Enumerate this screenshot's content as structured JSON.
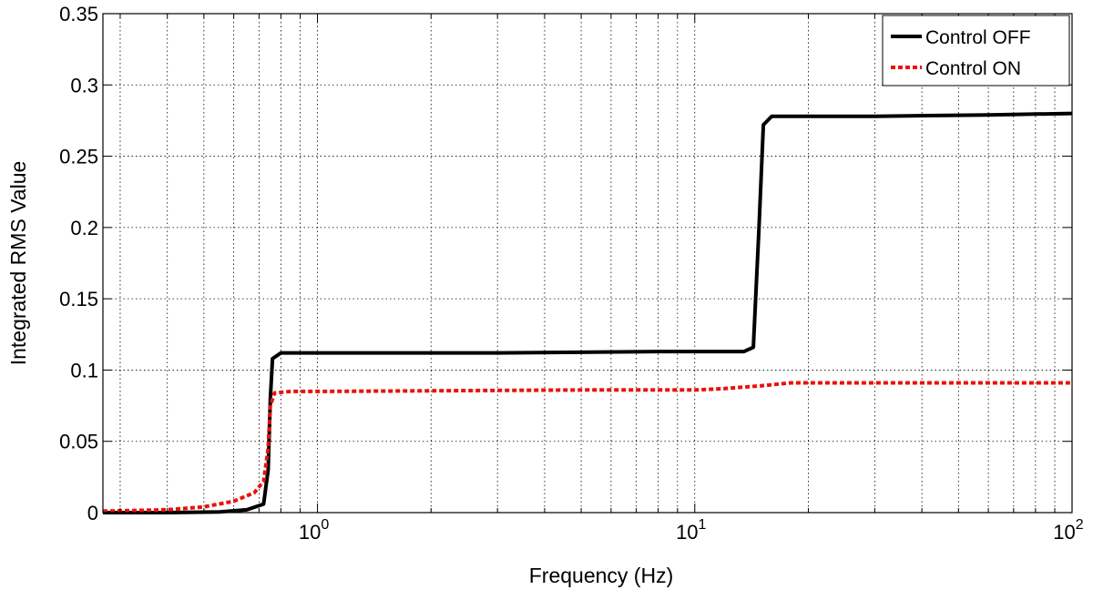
{
  "chart_data": {
    "type": "line",
    "title": "",
    "xlabel": "Frequency (Hz)",
    "ylabel": "Integrated RMS Value",
    "xscale": "log",
    "xlim": [
      0.27,
      100
    ],
    "ylim": [
      0,
      0.35
    ],
    "grid": true,
    "legend_position": "top-right",
    "x_ticks": [
      {
        "value": 1,
        "base": "10",
        "exp": "0"
      },
      {
        "value": 10,
        "base": "10",
        "exp": "1"
      },
      {
        "value": 100,
        "base": "10",
        "exp": "2"
      }
    ],
    "y_ticks": [
      {
        "value": 0,
        "label": "0"
      },
      {
        "value": 0.05,
        "label": "0.05"
      },
      {
        "value": 0.1,
        "label": "0.1"
      },
      {
        "value": 0.15,
        "label": "0.15"
      },
      {
        "value": 0.2,
        "label": "0.2"
      },
      {
        "value": 0.25,
        "label": "0.25"
      },
      {
        "value": 0.3,
        "label": "0.3"
      },
      {
        "value": 0.35,
        "label": "0.35"
      }
    ],
    "series": [
      {
        "name": "Control OFF",
        "color": "#000000",
        "style": "solid",
        "x": [
          0.27,
          0.4,
          0.55,
          0.65,
          0.72,
          0.74,
          0.75,
          0.76,
          0.8,
          1.0,
          3.0,
          8.0,
          13.5,
          14.3,
          14.8,
          15.2,
          16.0,
          30.0,
          60.0,
          100.0
        ],
        "y": [
          0.0,
          0.0,
          0.0005,
          0.002,
          0.006,
          0.03,
          0.08,
          0.108,
          0.112,
          0.112,
          0.112,
          0.113,
          0.113,
          0.116,
          0.2,
          0.272,
          0.278,
          0.278,
          0.279,
          0.28
        ]
      },
      {
        "name": "Control ON",
        "color": "#e8120c",
        "style": "dotted",
        "x": [
          0.27,
          0.4,
          0.5,
          0.6,
          0.68,
          0.72,
          0.74,
          0.75,
          0.77,
          0.85,
          1.0,
          5.0,
          10.0,
          12.0,
          15.0,
          18.0,
          30.0,
          100.0
        ],
        "y": [
          0.001,
          0.002,
          0.004,
          0.008,
          0.014,
          0.022,
          0.045,
          0.075,
          0.084,
          0.085,
          0.085,
          0.086,
          0.086,
          0.087,
          0.089,
          0.091,
          0.091,
          0.091
        ]
      }
    ]
  }
}
